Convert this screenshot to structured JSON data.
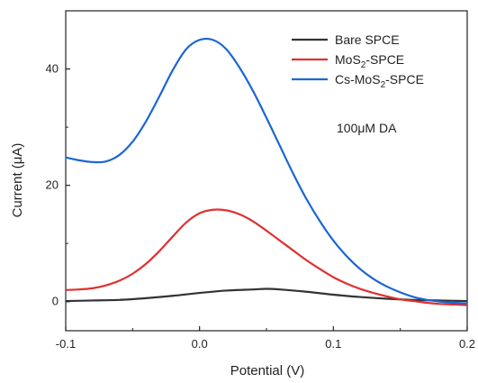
{
  "chart_data": {
    "type": "line",
    "xlabel": "Potential (V)",
    "ylabel": "Current (μA)",
    "xlim": [
      -0.1,
      0.2
    ],
    "ylim": [
      -5,
      50
    ],
    "xticks": [
      -0.1,
      0.0,
      0.1,
      0.2
    ],
    "xtick_labels": [
      "-0.1",
      "0.0",
      "0.1",
      "0.2"
    ],
    "yticks": [
      0,
      20,
      40
    ],
    "ytick_labels": [
      "0",
      "20",
      "40"
    ],
    "grid": false,
    "legend_position": "top-right",
    "annotation": "100μM DA",
    "series": [
      {
        "name": "Bare SPCE",
        "color": "#333333",
        "legend_main": "Bare SPCE",
        "legend_sub": "",
        "legend_tail": "",
        "x": [
          -0.1,
          -0.08,
          -0.06,
          -0.04,
          -0.02,
          0.0,
          0.02,
          0.04,
          0.05,
          0.06,
          0.08,
          0.1,
          0.12,
          0.14,
          0.16,
          0.18,
          0.2
        ],
        "y": [
          0.1,
          0.2,
          0.3,
          0.6,
          1.0,
          1.5,
          1.9,
          2.1,
          2.2,
          2.1,
          1.7,
          1.2,
          0.8,
          0.5,
          0.3,
          0.2,
          0.1
        ]
      },
      {
        "name": "MoS2-SPCE",
        "color": "#e03030",
        "legend_main": "MoS",
        "legend_sub": "2",
        "legend_tail": "-SPCE",
        "x": [
          -0.1,
          -0.09,
          -0.08,
          -0.07,
          -0.06,
          -0.05,
          -0.04,
          -0.03,
          -0.02,
          -0.01,
          0.0,
          0.01,
          0.02,
          0.03,
          0.04,
          0.05,
          0.06,
          0.07,
          0.08,
          0.09,
          0.1,
          0.11,
          0.12,
          0.13,
          0.14,
          0.15,
          0.16,
          0.17,
          0.18,
          0.19,
          0.2
        ],
        "y": [
          2.0,
          2.1,
          2.3,
          2.8,
          3.6,
          4.8,
          6.5,
          8.7,
          11.2,
          13.6,
          15.2,
          15.8,
          15.7,
          15.0,
          13.8,
          12.2,
          10.5,
          8.8,
          7.1,
          5.6,
          4.2,
          3.1,
          2.2,
          1.5,
          0.9,
          0.4,
          0.1,
          -0.2,
          -0.4,
          -0.5,
          -0.6
        ]
      },
      {
        "name": "Cs-MoS2-SPCE",
        "color": "#1a66d6",
        "legend_main": "Cs-MoS",
        "legend_sub": "2",
        "legend_tail": "-SPCE",
        "x": [
          -0.1,
          -0.09,
          -0.08,
          -0.07,
          -0.06,
          -0.05,
          -0.04,
          -0.03,
          -0.02,
          -0.01,
          0.0,
          0.01,
          0.02,
          0.03,
          0.04,
          0.05,
          0.06,
          0.07,
          0.08,
          0.09,
          0.1,
          0.11,
          0.12,
          0.13,
          0.14,
          0.15,
          0.16,
          0.17,
          0.18,
          0.19,
          0.2
        ],
        "y": [
          24.8,
          24.3,
          24.0,
          24.1,
          25.2,
          27.5,
          31.0,
          35.3,
          39.8,
          43.4,
          45.0,
          45.0,
          43.4,
          40.2,
          36.2,
          31.6,
          26.8,
          22.0,
          17.6,
          13.8,
          10.5,
          7.8,
          5.6,
          3.9,
          2.6,
          1.6,
          0.8,
          0.3,
          0.0,
          -0.2,
          -0.3
        ]
      }
    ]
  }
}
